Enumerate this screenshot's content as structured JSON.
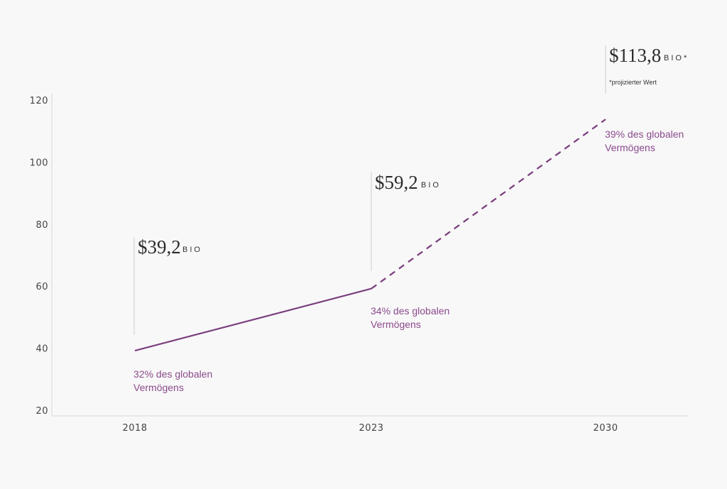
{
  "chart_data": {
    "type": "line",
    "title": "",
    "xlabel": "",
    "ylabel": "",
    "ylim": [
      20,
      120
    ],
    "y_ticks": [
      "20",
      "40",
      "60",
      "80",
      "100",
      "120"
    ],
    "x_ticks": [
      "2018",
      "2023",
      "2030"
    ],
    "grid": false,
    "series": [
      {
        "name": "Vermögen",
        "x": [
          2018,
          2023,
          2030
        ],
        "values": [
          39.2,
          59.2,
          113.8
        ],
        "line_style": [
          "solid",
          "dashed"
        ],
        "color": "#7b3f7e"
      }
    ],
    "annotations": [
      {
        "x": 2018,
        "amount": "$39,2",
        "unit": "BIO",
        "share_line1": "32% des globalen",
        "share_line2": "Vermögens"
      },
      {
        "x": 2023,
        "amount": "$59,2",
        "unit": "BIO",
        "share_line1": "34% des globalen",
        "share_line2": "Vermögens"
      },
      {
        "x": 2030,
        "amount": "$113,8",
        "unit": "BIO*",
        "share_line1": "39% des globalen",
        "share_line2": "Vermögens",
        "footnote": "*projizierter Wert"
      }
    ],
    "colors": {
      "line": "#7b3f7e",
      "share_text": "#8a4a8c",
      "axis": "#d8d8d8",
      "guide": "#cccccc"
    }
  }
}
